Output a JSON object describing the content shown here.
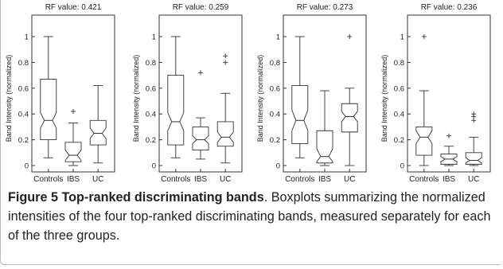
{
  "figure": {
    "caption_title": "Figure 5 Top-ranked discriminating bands",
    "caption_body": ". Boxplots summarizing the normalized intensities of the four top-ranked discriminating bands, measured separately for each of the three groups."
  },
  "chart_data": [
    {
      "type": "box",
      "title": "RF value: 0.421",
      "ylabel": "Band Intensity (normalized)",
      "ylim": [
        0,
        1
      ],
      "yticks": [
        "0",
        "0.2",
        "0.4",
        "0.6",
        "0.8",
        "1"
      ],
      "categories": [
        "Controls",
        "IBS",
        "UC"
      ],
      "boxes": [
        {
          "group": "Controls",
          "min": 0.06,
          "q1": 0.2,
          "median": 0.35,
          "q3": 0.67,
          "max": 1.0,
          "notch": [
            0.29,
            0.41
          ],
          "outliers": []
        },
        {
          "group": "IBS",
          "min": 0.0,
          "q1": 0.03,
          "median": 0.08,
          "q3": 0.18,
          "max": 0.33,
          "notch": [
            0.04,
            0.12
          ],
          "outliers": [
            0.42
          ]
        },
        {
          "group": "UC",
          "min": 0.02,
          "q1": 0.16,
          "median": 0.25,
          "q3": 0.35,
          "max": 0.62,
          "notch": [
            0.21,
            0.29
          ],
          "outliers": []
        }
      ]
    },
    {
      "type": "box",
      "title": "RF value: 0.259",
      "ylabel": "Band Intensity (normalized)",
      "ylim": [
        0,
        1
      ],
      "yticks": [
        "0",
        "0.2",
        "0.4",
        "0.6",
        "0.8",
        "1"
      ],
      "categories": [
        "Controls",
        "IBS",
        "UC"
      ],
      "boxes": [
        {
          "group": "Controls",
          "min": 0.06,
          "q1": 0.16,
          "median": 0.34,
          "q3": 0.7,
          "max": 1.0,
          "notch": [
            0.27,
            0.41
          ],
          "outliers": []
        },
        {
          "group": "IBS",
          "min": 0.05,
          "q1": 0.12,
          "median": 0.2,
          "q3": 0.3,
          "max": 0.37,
          "notch": [
            0.17,
            0.23
          ],
          "outliers": [
            0.72
          ]
        },
        {
          "group": "UC",
          "min": 0.02,
          "q1": 0.15,
          "median": 0.22,
          "q3": 0.34,
          "max": 0.56,
          "notch": [
            0.18,
            0.26
          ],
          "outliers": [
            0.8,
            0.85
          ]
        }
      ]
    },
    {
      "type": "box",
      "title": "RF value: 0.273",
      "ylabel": "Band Intensity (normalized)",
      "ylim": [
        0,
        1
      ],
      "yticks": [
        "0",
        "0.2",
        "0.4",
        "0.6",
        "0.8",
        "1"
      ],
      "categories": [
        "Controls",
        "IBS",
        "UC"
      ],
      "boxes": [
        {
          "group": "Controls",
          "min": 0.06,
          "q1": 0.17,
          "median": 0.35,
          "q3": 0.62,
          "max": 1.0,
          "notch": [
            0.27,
            0.43
          ],
          "outliers": []
        },
        {
          "group": "IBS",
          "min": 0.0,
          "q1": 0.02,
          "median": 0.07,
          "q3": 0.27,
          "max": 0.58,
          "notch": [
            0.03,
            0.13
          ],
          "outliers": []
        },
        {
          "group": "UC",
          "min": 0.0,
          "q1": 0.26,
          "median": 0.38,
          "q3": 0.48,
          "max": 0.6,
          "notch": [
            0.34,
            0.42
          ],
          "outliers": [
            1.0
          ]
        }
      ]
    },
    {
      "type": "box",
      "title": "RF value: 0.236",
      "ylabel": "Band Intensity (normalized)",
      "ylim": [
        0,
        1
      ],
      "yticks": [
        "0",
        "0.2",
        "0.4",
        "0.6",
        "0.8",
        "1"
      ],
      "categories": [
        "Controls",
        "IBS",
        "UC"
      ],
      "boxes": [
        {
          "group": "Controls",
          "min": 0.0,
          "q1": 0.08,
          "median": 0.22,
          "q3": 0.3,
          "max": 0.58,
          "notch": [
            0.17,
            0.27
          ],
          "outliers": [
            1.0
          ]
        },
        {
          "group": "IBS",
          "min": 0.0,
          "q1": 0.01,
          "median": 0.05,
          "q3": 0.09,
          "max": 0.15,
          "notch": [
            0.03,
            0.07
          ],
          "outliers": [
            0.23
          ]
        },
        {
          "group": "UC",
          "min": 0.0,
          "q1": 0.01,
          "median": 0.04,
          "q3": 0.1,
          "max": 0.22,
          "notch": [
            0.02,
            0.06
          ],
          "outliers": [
            0.35,
            0.38,
            0.4
          ]
        }
      ]
    }
  ]
}
